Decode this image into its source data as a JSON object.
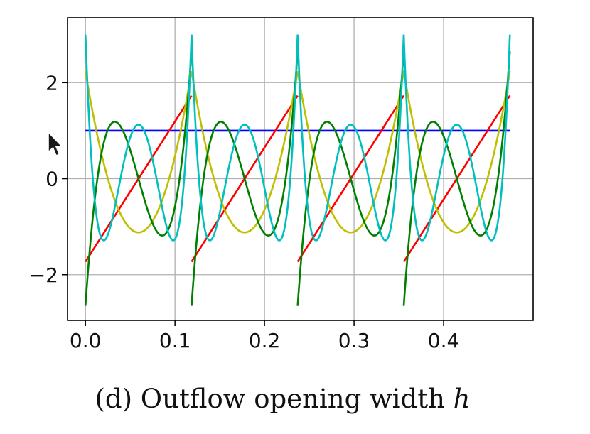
{
  "caption": {
    "prefix": "(d) Outflow opening width ",
    "math": "h"
  },
  "chart_data": {
    "type": "line",
    "title": "",
    "xlabel": "",
    "ylabel": "",
    "xlim": [
      -0.02,
      0.5
    ],
    "ylim": [
      -2.95,
      3.35
    ],
    "x_ticks": [
      "0.0",
      "0.1",
      "0.2",
      "0.3",
      "0.4"
    ],
    "y_ticks": [
      "2",
      "0",
      "−2"
    ],
    "grid": true,
    "legend": "none",
    "period": 0.1185,
    "periods": 4,
    "series": [
      {
        "color": "#0000ff",
        "shape": "constant",
        "values_per_period": [
          1.0
        ]
      },
      {
        "color": "#ff0000",
        "shape": "linear ramp",
        "start": -1.73,
        "end": 1.73
      },
      {
        "color": "#bfbf00",
        "shape": "degree-2 polynomial",
        "start": 2.24,
        "min": -1.12,
        "end": 2.24
      },
      {
        "color": "#008000",
        "shape": "degree-3 polynomial",
        "start": -2.65,
        "max": 1.19,
        "min": -1.19,
        "end": 2.65
      },
      {
        "color": "#00bfbf",
        "shape": "degree-4 polynomial",
        "start": 3.0,
        "min": -1.3,
        "max": 1.13,
        "end": 3.0
      }
    ]
  }
}
